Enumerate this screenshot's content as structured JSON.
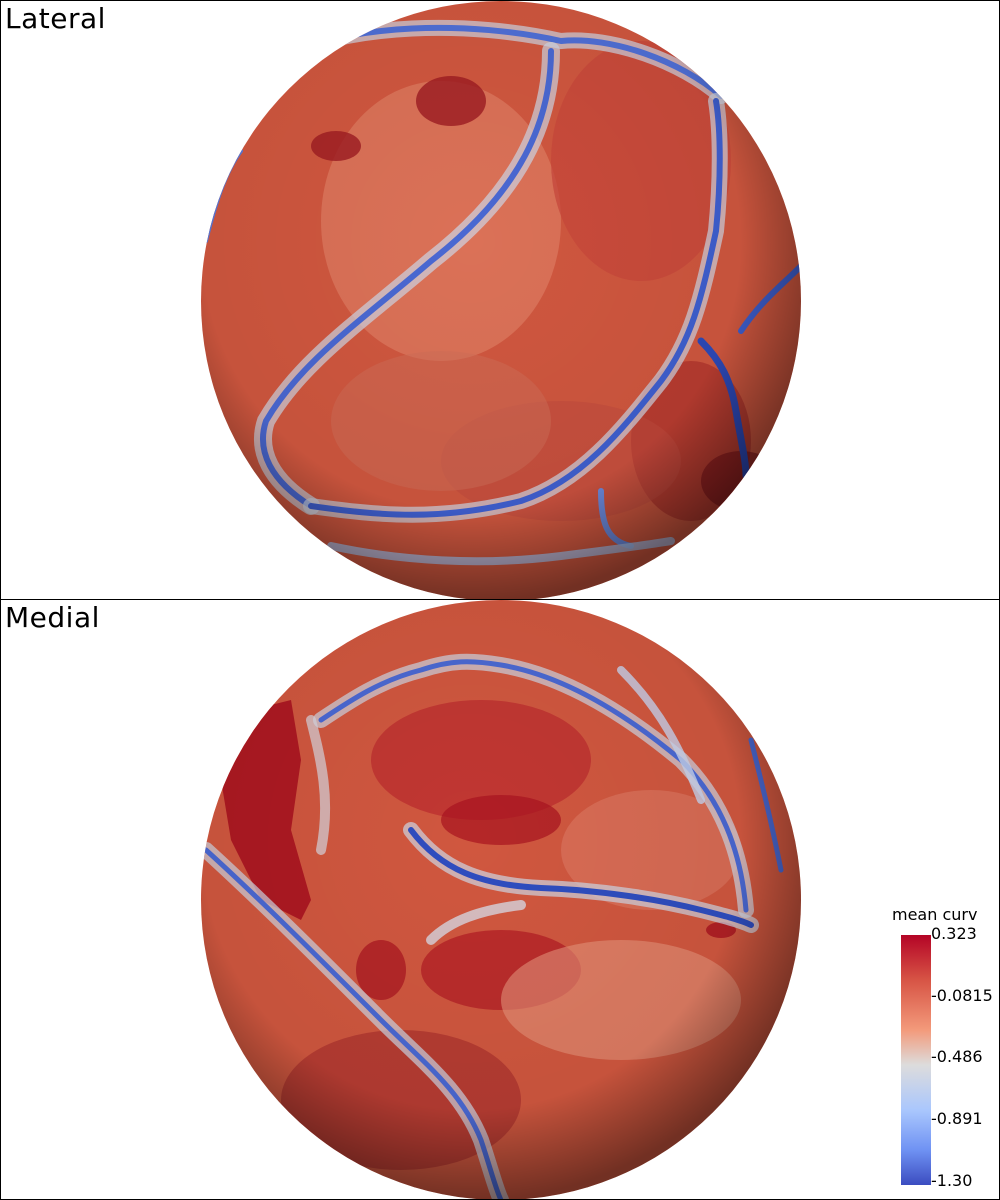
{
  "views": {
    "lateral": {
      "title": "Lateral"
    },
    "medial": {
      "title": "Medial"
    }
  },
  "colorbar": {
    "title": "mean curv",
    "ticks": [
      "0.323",
      "-0.0815",
      "-0.486",
      "-0.891",
      "-1.30"
    ],
    "colors": [
      "#b40426",
      "#f39a7b",
      "#dddcdc",
      "#aac7fd",
      "#3b4cc0"
    ]
  }
}
